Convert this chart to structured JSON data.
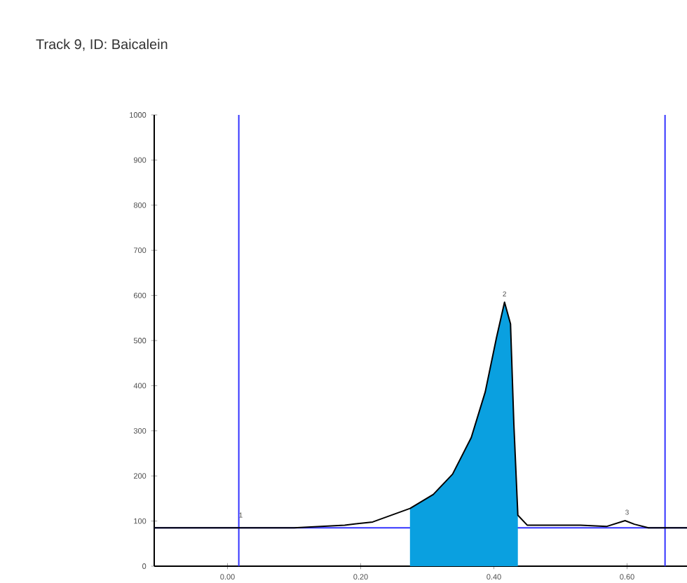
{
  "chart_data": {
    "type": "line",
    "title": "Track 9, ID: Baicalein",
    "series": [
      {
        "color": "#000000",
        "x": [
          -0.11,
          0.0,
          0.1,
          0.176,
          0.218,
          0.274,
          0.309,
          0.338,
          0.366,
          0.387,
          0.404,
          0.416,
          0.425,
          0.43,
          0.436,
          0.45,
          0.53,
          0.569,
          0.597,
          0.611,
          0.632,
          0.69
        ],
        "values": [
          85,
          85,
          85,
          91,
          98,
          128,
          159,
          204,
          285,
          386,
          507,
          585,
          537,
          315,
          113,
          91,
          91,
          88,
          101,
          93,
          85,
          85
        ]
      },
      {
        "type": "area",
        "color": "#0aa0e0",
        "x": [
          0.274,
          0.309,
          0.338,
          0.366,
          0.387,
          0.404,
          0.416,
          0.425,
          0.43,
          0.436
        ],
        "values": [
          128,
          159,
          204,
          285,
          386,
          507,
          585,
          537,
          315,
          113
        ]
      }
    ],
    "xlim": [
      -0.11,
      0.69
    ],
    "ylim": [
      0,
      1000
    ],
    "xticks": [
      {
        "value": 0,
        "label": "0.00"
      },
      {
        "value": 0.2,
        "label": "0.20"
      },
      {
        "value": 0.4,
        "label": "0.40"
      },
      {
        "value": 0.6,
        "label": "0.60"
      }
    ],
    "yticks": [
      0,
      100,
      200,
      300,
      400,
      500,
      600,
      700,
      800,
      900,
      1000
    ],
    "ref_lines": [
      {
        "axis": "x",
        "value": 0.017,
        "color": "#3333ff"
      },
      {
        "axis": "x",
        "value": 0.657,
        "color": "#3333ff"
      },
      {
        "axis": "y",
        "value": 85,
        "color": "#3333ff"
      }
    ],
    "annotations": [
      {
        "text": "1",
        "x": 0.02,
        "y": 95
      },
      {
        "text": "2",
        "x": 0.416,
        "y": 585
      },
      {
        "text": "3",
        "x": 0.6,
        "y": 101
      }
    ],
    "marker": "none",
    "line_style": "solid"
  }
}
